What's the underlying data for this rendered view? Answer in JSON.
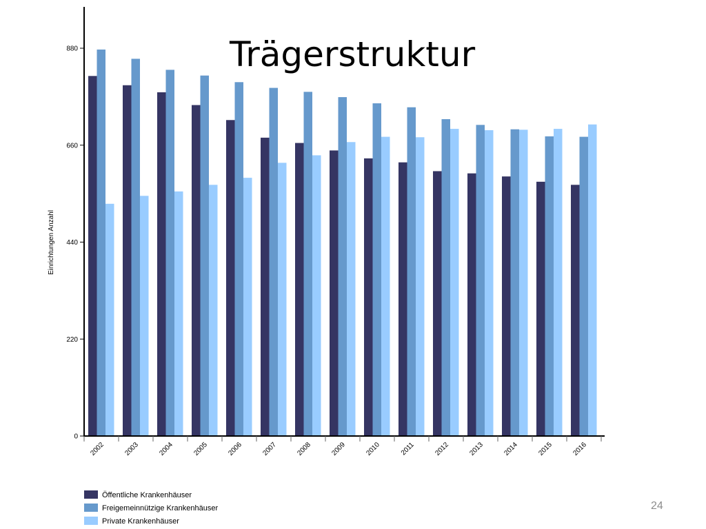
{
  "slide": {
    "title": "Trägerstruktur",
    "page_number": "24"
  },
  "chart_data": {
    "type": "bar",
    "title": "",
    "xlabel": "",
    "ylabel": "Einrichtungen Anzahl",
    "ylim": [
      0,
      880
    ],
    "yticks": [
      0,
      220,
      440,
      660,
      880
    ],
    "grid": false,
    "legend_position": "bottom-left",
    "categories": [
      "2002",
      "2003",
      "2004",
      "2005",
      "2006",
      "2007",
      "2008",
      "2009",
      "2010",
      "2011",
      "2012",
      "2013",
      "2014",
      "2015",
      "2016"
    ],
    "series": [
      {
        "name": "Öffentliche Krankenhäuser",
        "color": "#353563",
        "values": [
          817,
          796,
          780,
          751,
          717,
          677,
          665,
          648,
          630,
          621,
          601,
          596,
          589,
          577,
          570
        ]
      },
      {
        "name": "Freigemeinnützige Krankenhäuser",
        "color": "#6699cc",
        "values": [
          877,
          856,
          831,
          818,
          803,
          790,
          781,
          769,
          755,
          746,
          719,
          706,
          696,
          680,
          679
        ]
      },
      {
        "name": "Private Krankenhäuser",
        "color": "#99ccff",
        "values": [
          527,
          545,
          555,
          570,
          586,
          620,
          637,
          667,
          679,
          678,
          697,
          694,
          695,
          697,
          707
        ]
      }
    ]
  }
}
